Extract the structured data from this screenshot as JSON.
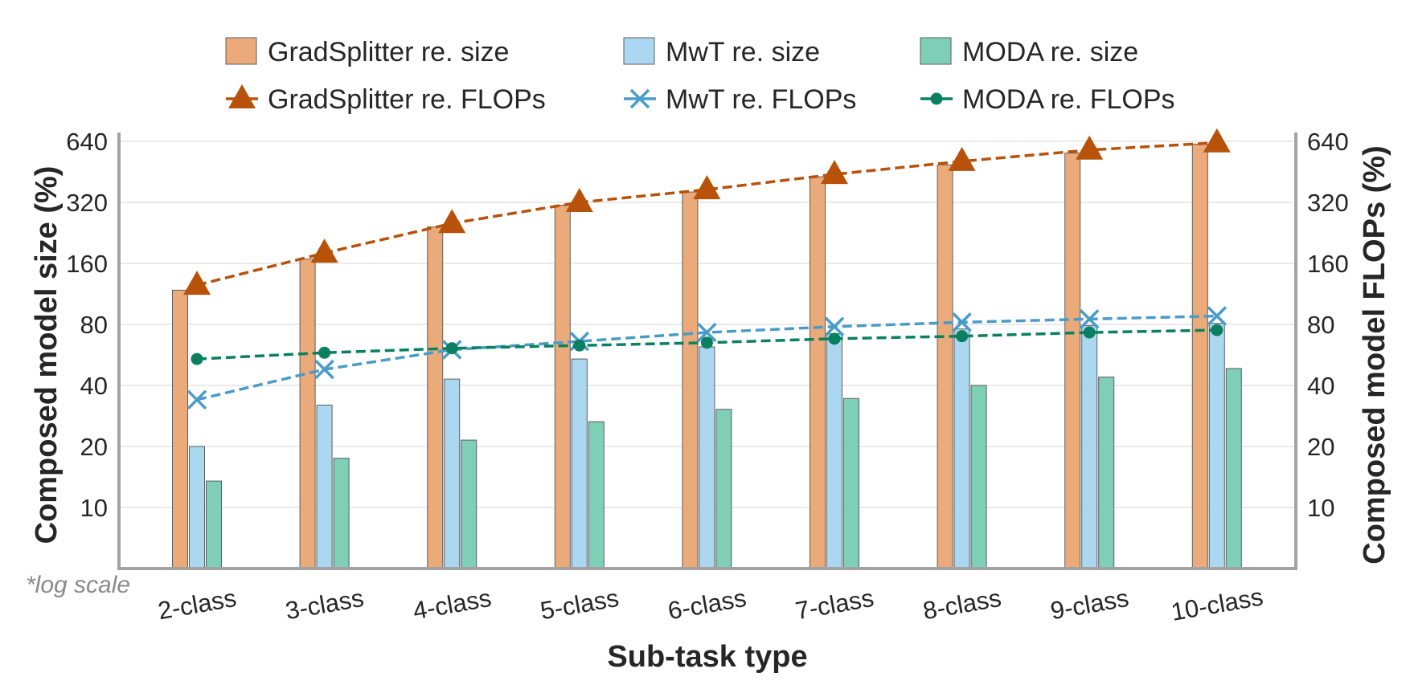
{
  "chart_data": {
    "type": "bar",
    "categories": [
      "2-class",
      "3-class",
      "4-class",
      "5-class",
      "6-class",
      "7-class",
      "8-class",
      "9-class",
      "10-class"
    ],
    "xlabel": "Sub-task type",
    "ylabel": "Composed model size (%)",
    "ylabel_right": "Composed model FLOPs (%)",
    "note": "*log scale",
    "yscale": "log2",
    "ylim": [
      5,
      660
    ],
    "yticks": [
      10,
      20,
      40,
      80,
      160,
      320,
      640
    ],
    "ytick_labels": [
      "10",
      "20",
      "40",
      "80",
      "160",
      "320",
      "640"
    ],
    "grid": true,
    "legend_position": "top",
    "bar_series": [
      {
        "name": "GradSplitter re. size",
        "color": "#EAAA79",
        "values": [
          118,
          168,
          242,
          310,
          360,
          428,
          490,
          560,
          620
        ]
      },
      {
        "name": "MwT re. size",
        "color": "#ABD8F0",
        "values": [
          20,
          32,
          43,
          54,
          62,
          72,
          76,
          79,
          81
        ]
      },
      {
        "name": "MODA re. size",
        "color": "#7ECFB5",
        "values": [
          13.5,
          17.5,
          21.5,
          26.5,
          30.5,
          34.5,
          40,
          44,
          48.5
        ]
      }
    ],
    "line_series": [
      {
        "name": "GradSplitter re. FLOPs",
        "color": "#B8520A",
        "marker": "triangle",
        "values": [
          125,
          180,
          252,
          320,
          370,
          440,
          510,
          580,
          630
        ]
      },
      {
        "name": "MwT re. FLOPs",
        "color": "#4A9CC8",
        "marker": "x",
        "values": [
          34,
          48,
          60,
          66,
          73,
          78,
          82,
          85,
          88
        ]
      },
      {
        "name": "MODA re. FLOPs",
        "color": "#0A8060",
        "marker": "circle",
        "values": [
          54,
          58,
          61,
          63,
          65,
          68,
          70,
          73,
          75
        ]
      }
    ]
  }
}
